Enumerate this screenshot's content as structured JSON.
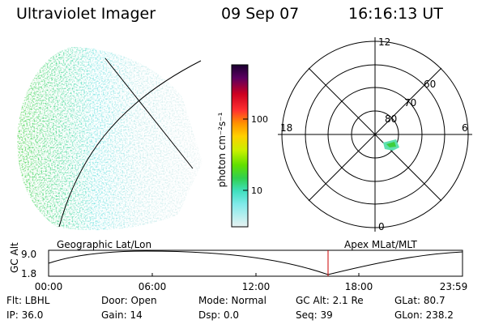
{
  "header": {
    "title": "Ultraviolet Imager",
    "date": "09 Sep 07",
    "time": "16:16:13 UT"
  },
  "colorbar": {
    "unit_label": "photon cm⁻²s⁻¹",
    "ticks": [
      "100",
      "10"
    ]
  },
  "polar_plot": {
    "mlt_labels": [
      "12",
      "18",
      "6",
      "0"
    ],
    "lat_labels": [
      "60",
      "70",
      "80"
    ]
  },
  "panel_labels": {
    "left": "Geographic Lat/Lon",
    "right": "Apex MLat/MLT"
  },
  "altitude_strip": {
    "ylabel": "GC Alt",
    "yticks": [
      "9.0",
      "1.8"
    ],
    "xticks": [
      "00:00",
      "06:00",
      "12:00",
      "18:00",
      "23:59"
    ]
  },
  "info": {
    "flt": "Flt: LBHL",
    "door": "Door: Open",
    "mode": "Mode: Normal",
    "gcalt": "GC Alt: 2.1 Re",
    "glat": "GLat:  80.7",
    "ip": "IP: 36.0",
    "gain": "Gain: 14",
    "dsp": "Dsp:     0.0",
    "seq": "Seq: 39",
    "glon": "GLon: 238.2"
  },
  "colors": {
    "colorbar_top": "#1a0030",
    "colorbar_bottom": "#e8f2f2",
    "current_time_marker": "#cc0000",
    "auroral_green": "#3ccf3c",
    "auroral_cyan": "#5fe0e0"
  }
}
